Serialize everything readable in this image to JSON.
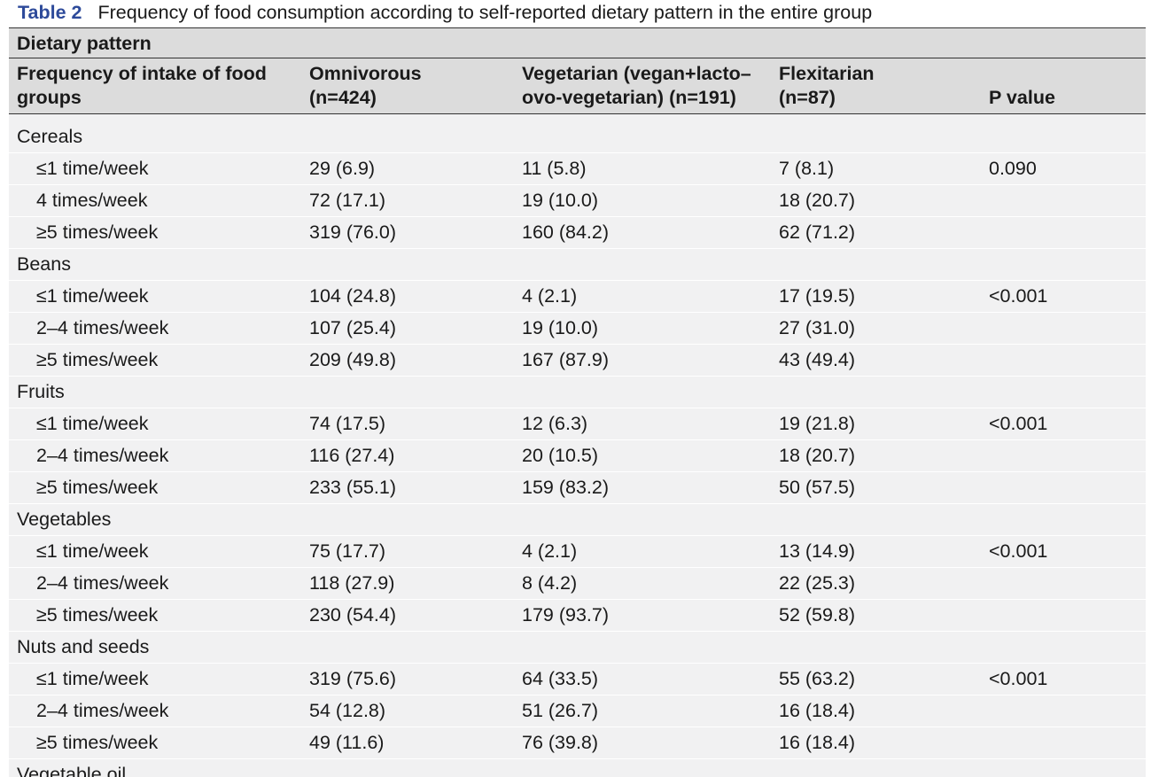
{
  "caption": {
    "label": "Table 2",
    "text": "Frequency of food consumption according to self-reported dietary pattern in the entire group"
  },
  "table": {
    "super_header": "Dietary pattern",
    "headers": {
      "food_line1": "Frequency of intake of food",
      "food_line2": "groups",
      "omni_line1": "Omnivorous",
      "omni_line2": "(n=424)",
      "veg_line1": "Vegetarian (vegan+lacto–",
      "veg_line2": "ovo-vegetarian) (n=191)",
      "flex_line1": "Flexitarian",
      "flex_line2": "(n=87)",
      "pvalue": "P value"
    },
    "groups": [
      {
        "name": "Cereals",
        "rows": [
          {
            "freq": "≤1 time/week",
            "omni": "29 (6.9)",
            "veg": "11 (5.8)",
            "flex": "7 (8.1)",
            "p": "0.090"
          },
          {
            "freq": "4 times/week",
            "omni": "72 (17.1)",
            "veg": "19 (10.0)",
            "flex": "18 (20.7)",
            "p": ""
          },
          {
            "freq": "≥5 times/week",
            "omni": "319 (76.0)",
            "veg": "160 (84.2)",
            "flex": "62 (71.2)",
            "p": ""
          }
        ]
      },
      {
        "name": "Beans",
        "rows": [
          {
            "freq": "≤1 time/week",
            "omni": "104 (24.8)",
            "veg": "4 (2.1)",
            "flex": "17 (19.5)",
            "p": "<0.001"
          },
          {
            "freq": "2–4 times/week",
            "omni": "107 (25.4)",
            "veg": "19 (10.0)",
            "flex": "27 (31.0)",
            "p": ""
          },
          {
            "freq": "≥5 times/week",
            "omni": "209 (49.8)",
            "veg": "167 (87.9)",
            "flex": "43 (49.4)",
            "p": ""
          }
        ]
      },
      {
        "name": "Fruits",
        "rows": [
          {
            "freq": "≤1 time/week",
            "omni": "74 (17.5)",
            "veg": "12 (6.3)",
            "flex": "19 (21.8)",
            "p": "<0.001"
          },
          {
            "freq": "2–4 times/week",
            "omni": "116 (27.4)",
            "veg": "20 (10.5)",
            "flex": "18 (20.7)",
            "p": ""
          },
          {
            "freq": "≥5 times/week",
            "omni": "233 (55.1)",
            "veg": "159 (83.2)",
            "flex": "50 (57.5)",
            "p": ""
          }
        ]
      },
      {
        "name": "Vegetables",
        "rows": [
          {
            "freq": "≤1 time/week",
            "omni": "75 (17.7)",
            "veg": "4 (2.1)",
            "flex": "13 (14.9)",
            "p": "<0.001"
          },
          {
            "freq": "2–4 times/week",
            "omni": "118 (27.9)",
            "veg": "8 (4.2)",
            "flex": "22 (25.3)",
            "p": ""
          },
          {
            "freq": "≥5 times/week",
            "omni": "230 (54.4)",
            "veg": "179 (93.7)",
            "flex": "52 (59.8)",
            "p": ""
          }
        ]
      },
      {
        "name": "Nuts and seeds",
        "rows": [
          {
            "freq": "≤1 time/week",
            "omni": "319 (75.6)",
            "veg": "64 (33.5)",
            "flex": "55 (63.2)",
            "p": "<0.001"
          },
          {
            "freq": "2–4 times/week",
            "omni": "54 (12.8)",
            "veg": "51 (26.7)",
            "flex": "16 (18.4)",
            "p": ""
          },
          {
            "freq": "≥5 times/week",
            "omni": "49 (11.6)",
            "veg": "76 (39.8)",
            "flex": "16 (18.4)",
            "p": ""
          }
        ]
      }
    ],
    "cut_off_row": "Vegetable oil"
  }
}
